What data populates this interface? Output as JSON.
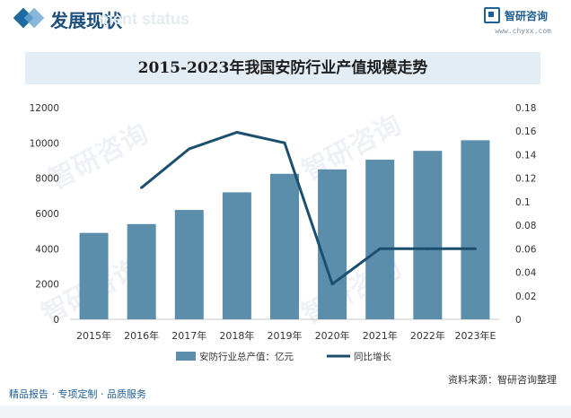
{
  "header": {
    "title": "发展现状",
    "ghost_text": "ment status",
    "brand_name": "智研咨询",
    "brand_url": "www.chyxx.com"
  },
  "watermark": {
    "text": "智研咨询"
  },
  "footer": {
    "services": "精品报告 · 专项定制 · 品质服务",
    "source": "资料来源：智研咨询整理"
  },
  "colors": {
    "bar": "#5a8eab",
    "line": "#1c4e6e",
    "accent": "#1f5f96"
  },
  "chart_data": {
    "type": "bar",
    "title": "2015-2023年我国安防行业产值规模走势",
    "categories": [
      "2015年",
      "2016年",
      "2017年",
      "2018年",
      "2019年",
      "2020年",
      "2021年",
      "2022年",
      "2023年E"
    ],
    "series": [
      {
        "name": "安防行业总产值：亿元",
        "type": "bar",
        "axis": "left",
        "values": [
          4900,
          5400,
          6200,
          7200,
          8250,
          8500,
          9050,
          9550,
          10150
        ]
      },
      {
        "name": "同比增长",
        "type": "line",
        "axis": "right",
        "values": [
          null,
          0.112,
          0.145,
          0.159,
          0.15,
          0.03,
          0.06,
          0.06,
          0.06
        ]
      }
    ],
    "y_left": {
      "min": 0,
      "max": 12000,
      "ticks": [
        "0",
        "2000",
        "4000",
        "6000",
        "8000",
        "10000",
        "12000"
      ]
    },
    "y_right": {
      "min": 0,
      "max": 0.18,
      "ticks": [
        "0",
        "0.02",
        "0.04",
        "0.06",
        "0.08",
        "0.1",
        "0.12",
        "0.14",
        "0.16",
        "0.18"
      ]
    },
    "grid": false,
    "legend_position": "bottom"
  }
}
